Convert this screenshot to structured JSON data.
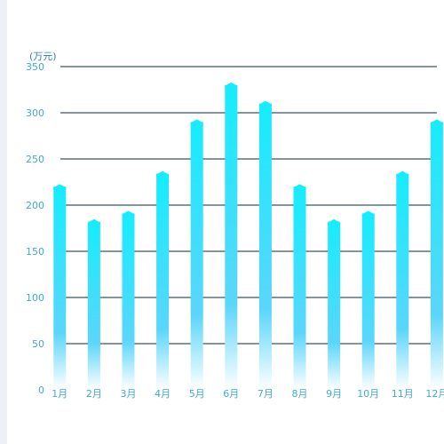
{
  "chart_data": {
    "type": "bar",
    "unit_label": "(万元)",
    "categories": [
      "1月",
      "2月",
      "3月",
      "4月",
      "5月",
      "6月",
      "7月",
      "8月",
      "9月",
      "10月",
      "11月",
      "12月"
    ],
    "values": [
      220,
      182,
      191,
      234,
      290,
      330,
      310,
      220,
      182,
      191,
      234,
      290
    ],
    "ylim": [
      0,
      350
    ],
    "y_ticks": [
      0,
      50,
      100,
      150,
      200,
      250,
      300,
      350
    ],
    "grid": true,
    "colors": {
      "bar_top": "#16ecff",
      "bar_mid": "#5ad6fb",
      "bar_bottom": "#ffffff",
      "grid_line": "#0d2a3a",
      "tick_label": "#3ea8d8"
    }
  }
}
